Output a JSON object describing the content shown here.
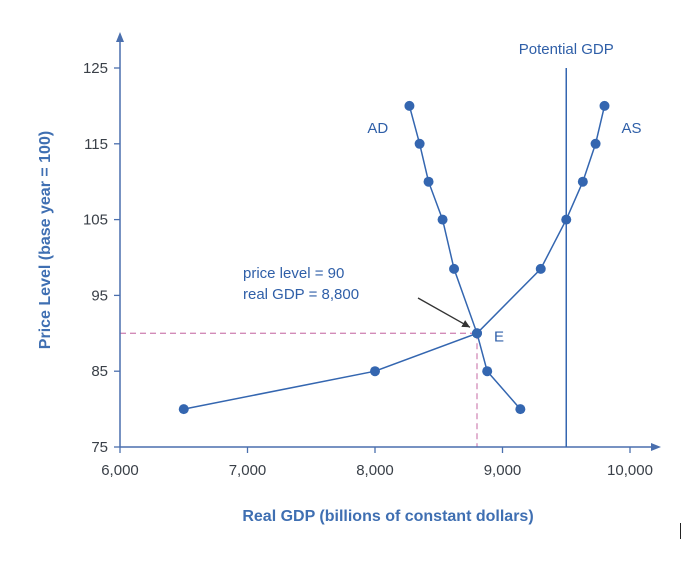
{
  "chart_data": {
    "type": "line",
    "title": "",
    "xlabel": "Real GDP (billions of constant dollars)",
    "ylabel": "Price Level (base year = 100)",
    "xlim": [
      6000,
      10000
    ],
    "ylim": [
      75,
      125
    ],
    "x_ticks": [
      6000,
      7000,
      8000,
      9000,
      10000
    ],
    "x_tick_labels": [
      "6,000",
      "7,000",
      "8,000",
      "9,000",
      "10,000"
    ],
    "y_ticks": [
      75,
      85,
      95,
      105,
      115,
      125
    ],
    "y_tick_labels": [
      "75",
      "85",
      "95",
      "105",
      "115",
      "125"
    ],
    "series": [
      {
        "name": "AD",
        "points": [
          {
            "x": 8270,
            "y": 120
          },
          {
            "x": 8350,
            "y": 115
          },
          {
            "x": 8420,
            "y": 110
          },
          {
            "x": 8530,
            "y": 105
          },
          {
            "x": 8620,
            "y": 98.5
          },
          {
            "x": 8800,
            "y": 90
          },
          {
            "x": 8880,
            "y": 85
          },
          {
            "x": 9140,
            "y": 80
          }
        ]
      },
      {
        "name": "AS",
        "points": [
          {
            "x": 6500,
            "y": 80
          },
          {
            "x": 8000,
            "y": 85
          },
          {
            "x": 8800,
            "y": 90
          },
          {
            "x": 9300,
            "y": 98.5
          },
          {
            "x": 9500,
            "y": 105
          },
          {
            "x": 9630,
            "y": 110
          },
          {
            "x": 9730,
            "y": 115
          },
          {
            "x": 9800,
            "y": 120
          }
        ]
      }
    ],
    "potential_gdp": {
      "label": "Potential GDP",
      "x": 9500
    },
    "equilibrium": {
      "label": "E",
      "x": 8800,
      "y": 90
    },
    "annotation_lines": [
      "price level = 90",
      "real GDP = 8,800"
    ],
    "colors": {
      "series": "#3466b0",
      "dash": "#d28bb8",
      "axis": "#4a6fae",
      "text": "#2f5fa8",
      "axis_title": "#3f6fb2",
      "arrow": "#333333"
    }
  }
}
